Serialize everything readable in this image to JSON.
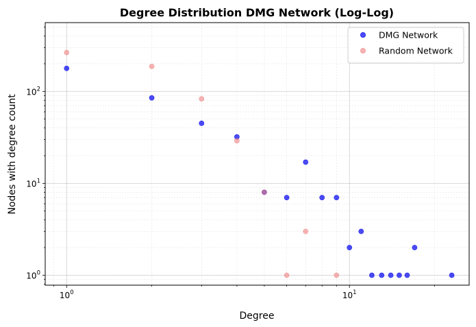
{
  "chart_data": {
    "type": "scatter",
    "title": "Degree Distribution DMG Network (Log-Log)",
    "xlabel": "Degree",
    "ylabel": "Nodes with degree count",
    "xscale": "log",
    "yscale": "log",
    "xlim": [
      0.84,
      26.5
    ],
    "ylim": [
      0.78,
      560
    ],
    "x_ticks": [
      {
        "value": 1,
        "base": "10",
        "exp": "0"
      },
      {
        "value": 10,
        "base": "10",
        "exp": "1"
      }
    ],
    "y_ticks": [
      {
        "value": 1,
        "base": "10",
        "exp": "0"
      },
      {
        "value": 10,
        "base": "10",
        "exp": "1"
      },
      {
        "value": 100,
        "base": "10",
        "exp": "2"
      }
    ],
    "grid": true,
    "legend_position": "top-right",
    "series": [
      {
        "name": "DMG Network",
        "color": "#0000ee",
        "points": [
          {
            "x": 1,
            "y": 178
          },
          {
            "x": 2,
            "y": 85
          },
          {
            "x": 3,
            "y": 45
          },
          {
            "x": 4,
            "y": 32
          },
          {
            "x": 5,
            "y": 8
          },
          {
            "x": 6,
            "y": 7
          },
          {
            "x": 7,
            "y": 17
          },
          {
            "x": 8,
            "y": 7
          },
          {
            "x": 9,
            "y": 7
          },
          {
            "x": 10,
            "y": 2
          },
          {
            "x": 11,
            "y": 3
          },
          {
            "x": 12,
            "y": 1
          },
          {
            "x": 13,
            "y": 1
          },
          {
            "x": 14,
            "y": 1
          },
          {
            "x": 15,
            "y": 1
          },
          {
            "x": 16,
            "y": 1
          },
          {
            "x": 17,
            "y": 2
          },
          {
            "x": 23,
            "y": 1
          }
        ]
      },
      {
        "name": "Random Network",
        "color": "#f08080",
        "points": [
          {
            "x": 1,
            "y": 265
          },
          {
            "x": 2,
            "y": 187
          },
          {
            "x": 3,
            "y": 83
          },
          {
            "x": 4,
            "y": 29
          },
          {
            "x": 5,
            "y": 8
          },
          {
            "x": 6,
            "y": 1
          },
          {
            "x": 7,
            "y": 3
          },
          {
            "x": 9,
            "y": 1
          }
        ]
      }
    ]
  }
}
